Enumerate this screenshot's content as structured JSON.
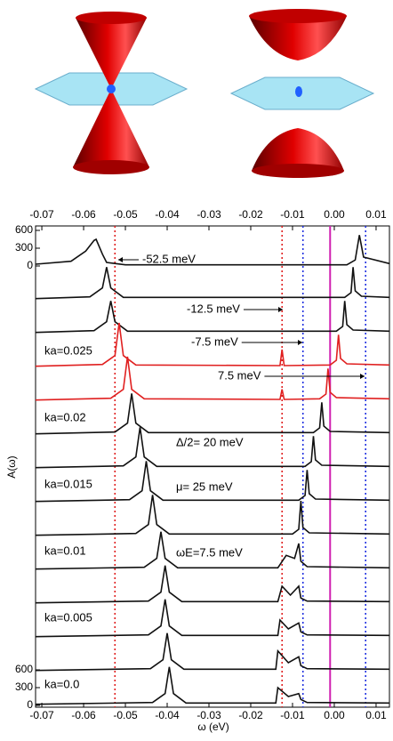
{
  "chart_data": {
    "type": "line",
    "xlabel": "ω (eV)",
    "ylabel": "A(ω)",
    "xlim": [
      -0.0715,
      0.0132
    ],
    "xticks": [
      -0.07,
      -0.06,
      -0.05,
      -0.04,
      -0.03,
      -0.02,
      -0.01,
      {
        "value": 0,
        "label": "0.00"
      },
      0.01
    ],
    "yticks": [
      0,
      300,
      600
    ],
    "vlines": [
      {
        "value": -0.0525,
        "color": "#e02020",
        "style": "dotted"
      },
      {
        "value": -0.0125,
        "color": "#e02020",
        "style": "dotted"
      },
      {
        "value": -0.0075,
        "color": "#2030e0",
        "style": "dotted"
      },
      {
        "value": 0.0075,
        "color": "#2030e0",
        "style": "dotted"
      },
      {
        "value": -0.001,
        "color": "#d020b0",
        "style": "solid"
      }
    ],
    "annotations": [
      "-52.5 meV",
      "-12.5 meV",
      "-7.5 meV",
      "7.5 meV",
      "Δ/2= 20 meV",
      "μ= 25 meV",
      "ωE=7.5 meV",
      "ka=0.025",
      "ka=0.02",
      "ka=0.015",
      "ka=0.01",
      "ka=0.005",
      "ka=0.0"
    ],
    "series": [
      {
        "color": "#111",
        "x": [
          -0.0715,
          -0.063,
          -0.0595,
          -0.0575,
          -0.057,
          -0.0555,
          -0.0545,
          -0.05,
          0.003,
          0.005,
          0.006,
          0.007,
          0.0132
        ],
        "values": [
          30,
          80,
          250,
          430,
          450,
          200,
          60,
          20,
          20,
          100,
          520,
          150,
          40
        ]
      },
      {
        "color": "#111",
        "x": [
          -0.0715,
          -0.0585,
          -0.0555,
          -0.0545,
          -0.0535,
          -0.0505,
          0.0025,
          0.004,
          0.0045,
          0.005,
          0.0065,
          0.0132
        ],
        "values": [
          20,
          50,
          200,
          550,
          200,
          40,
          40,
          120,
          550,
          150,
          60,
          40
        ]
      },
      {
        "color": "#111",
        "x": [
          -0.0715,
          -0.0575,
          -0.0545,
          -0.0535,
          -0.0525,
          -0.0495,
          0.0005,
          0.002,
          0.0025,
          0.003,
          0.0045,
          0.0132
        ],
        "values": [
          20,
          50,
          200,
          550,
          200,
          40,
          40,
          120,
          550,
          150,
          60,
          40
        ]
      },
      {
        "color": "#e02020",
        "x": [
          -0.0715,
          -0.0555,
          -0.0525,
          -0.0515,
          -0.0505,
          -0.0475,
          -0.013,
          -0.0125,
          -0.012,
          -0.001,
          0.0005,
          0.001,
          0.0015,
          0.003,
          0.0132
        ],
        "values": [
          20,
          50,
          200,
          750,
          200,
          40,
          30,
          300,
          30,
          40,
          120,
          550,
          150,
          60,
          40
        ]
      },
      {
        "color": "#e02020",
        "x": [
          -0.0715,
          -0.0535,
          -0.0505,
          -0.0495,
          -0.0485,
          -0.0455,
          -0.013,
          -0.0125,
          -0.012,
          -0.0035,
          -0.002,
          -0.0015,
          -0.001,
          0.0005,
          0.0132
        ],
        "values": [
          20,
          50,
          200,
          750,
          200,
          40,
          30,
          200,
          30,
          40,
          120,
          550,
          150,
          60,
          40
        ]
      },
      {
        "color": "#111",
        "x": [
          -0.0715,
          -0.0525,
          -0.0495,
          -0.0485,
          -0.0475,
          -0.0445,
          -0.005,
          -0.0035,
          -0.003,
          -0.0025,
          -0.001,
          0.0132
        ],
        "values": [
          20,
          50,
          200,
          700,
          200,
          40,
          40,
          120,
          550,
          150,
          60,
          40
        ]
      },
      {
        "color": "#111",
        "x": [
          -0.0715,
          -0.0505,
          -0.0475,
          -0.0465,
          -0.0455,
          -0.0425,
          -0.007,
          -0.0055,
          -0.005,
          -0.0045,
          -0.003,
          0.0132
        ],
        "values": [
          20,
          50,
          200,
          700,
          200,
          40,
          40,
          120,
          550,
          150,
          60,
          40
        ]
      },
      {
        "color": "#111",
        "x": [
          -0.0715,
          -0.049,
          -0.046,
          -0.045,
          -0.044,
          -0.041,
          -0.0085,
          -0.007,
          -0.0065,
          -0.006,
          -0.0045,
          0.0132
        ],
        "values": [
          20,
          50,
          200,
          700,
          200,
          40,
          40,
          120,
          550,
          150,
          60,
          40
        ]
      },
      {
        "color": "#111",
        "x": [
          -0.0715,
          -0.0475,
          -0.0445,
          -0.0435,
          -0.0425,
          -0.0395,
          -0.01,
          -0.0085,
          -0.008,
          -0.0075,
          -0.006,
          0.0132
        ],
        "values": [
          20,
          50,
          200,
          700,
          200,
          40,
          40,
          120,
          600,
          150,
          60,
          40
        ]
      },
      {
        "color": "#111",
        "x": [
          -0.0715,
          -0.0455,
          -0.0425,
          -0.0415,
          -0.0405,
          -0.0375,
          -0.0135,
          -0.0115,
          -0.0095,
          -0.0085,
          -0.008,
          -0.0065,
          0.0132
        ],
        "values": [
          20,
          50,
          200,
          650,
          200,
          40,
          40,
          250,
          200,
          450,
          150,
          60,
          40
        ]
      },
      {
        "color": "#111",
        "x": [
          -0.0715,
          -0.0445,
          -0.0415,
          -0.0405,
          -0.0395,
          -0.0365,
          -0.0135,
          -0.0125,
          -0.0105,
          -0.0085,
          -0.008,
          -0.0065,
          0.0132
        ],
        "values": [
          20,
          50,
          200,
          650,
          200,
          40,
          40,
          300,
          150,
          300,
          100,
          50,
          40
        ]
      },
      {
        "color": "#111",
        "x": [
          -0.0715,
          -0.0445,
          -0.0415,
          -0.0405,
          -0.0395,
          -0.0365,
          -0.0135,
          -0.013,
          -0.011,
          -0.0085,
          -0.008,
          -0.0065,
          0.0132
        ],
        "values": [
          20,
          50,
          200,
          650,
          200,
          40,
          40,
          300,
          150,
          250,
          100,
          50,
          40
        ]
      },
      {
        "color": "#111",
        "x": [
          -0.0715,
          -0.044,
          -0.041,
          -0.04,
          -0.039,
          -0.036,
          -0.014,
          -0.0135,
          -0.011,
          -0.0085,
          -0.008,
          -0.0065,
          0.0132
        ],
        "values": [
          20,
          50,
          200,
          650,
          200,
          40,
          40,
          350,
          150,
          250,
          100,
          50,
          40
        ]
      },
      {
        "color": "#111",
        "x": [
          -0.0715,
          -0.0435,
          -0.0405,
          -0.0395,
          -0.0385,
          -0.0355,
          -0.014,
          -0.0135,
          -0.011,
          -0.0085,
          -0.008,
          -0.0065,
          0.0132
        ],
        "values": [
          20,
          50,
          200,
          650,
          200,
          40,
          40,
          300,
          150,
          200,
          100,
          50,
          40
        ]
      }
    ]
  }
}
